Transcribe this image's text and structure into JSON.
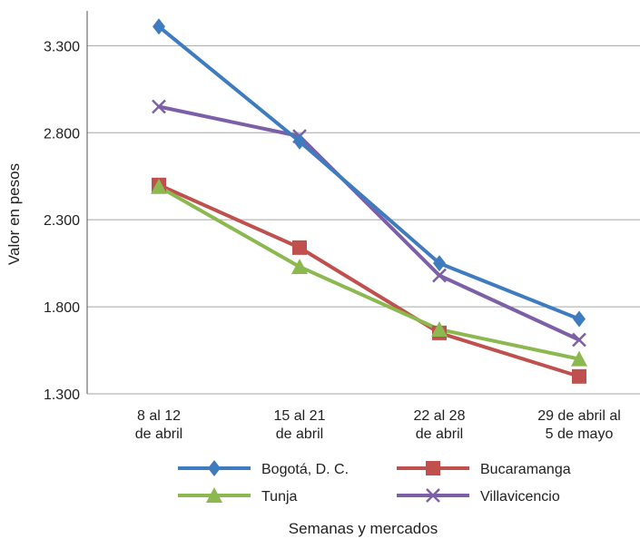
{
  "chart_data": {
    "type": "line",
    "title": "",
    "xlabel": "Semanas y mercados",
    "ylabel": "Valor en pesos",
    "ylim": [
      1300,
      3500
    ],
    "yticks": [
      1300,
      1800,
      2300,
      2800,
      3300
    ],
    "ytick_labels": [
      "1.300",
      "1.800",
      "2.300",
      "2.800",
      "3.300"
    ],
    "grid": true,
    "legend_position": "bottom",
    "categories": [
      [
        "8 al 12",
        "de abril"
      ],
      [
        "15 al 21",
        "de abril"
      ],
      [
        "22 al 28",
        "de abril"
      ],
      [
        "29 de abril al",
        "5 de mayo"
      ]
    ],
    "series": [
      {
        "name": "Bogotá, D. C.",
        "marker": "diamond",
        "color": "#3F7CBF",
        "values": [
          3410,
          2750,
          2050,
          1730
        ]
      },
      {
        "name": "Bucaramanga",
        "marker": "square",
        "color": "#C0504D",
        "values": [
          2500,
          2140,
          1650,
          1400
        ]
      },
      {
        "name": "Tunja",
        "marker": "triangle",
        "color": "#8CB850",
        "values": [
          2490,
          2030,
          1670,
          1500
        ]
      },
      {
        "name": "Villavicencio",
        "marker": "x",
        "color": "#7D5FA8",
        "values": [
          2950,
          2780,
          1980,
          1610
        ]
      }
    ]
  }
}
